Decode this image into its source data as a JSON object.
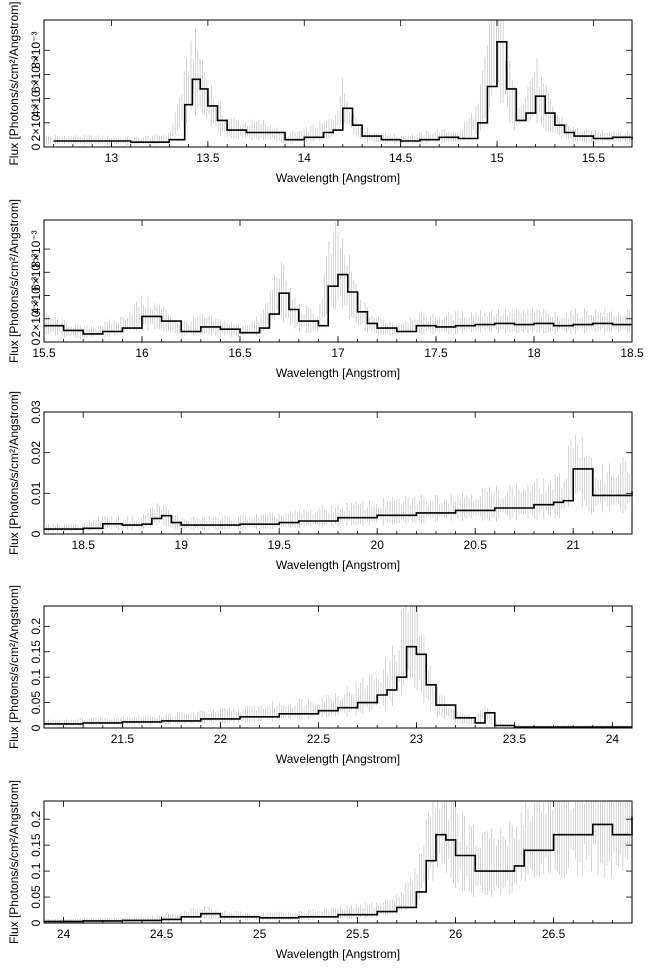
{
  "chart_data": [
    {
      "type": "line",
      "xlabel": "Wavelength [Angstrom]",
      "ylabel": "Flux [Photons/s/cm²/Angstrom]",
      "xlim": [
        12.65,
        15.7
      ],
      "ylim": [
        0,
        0.0105
      ],
      "xticks": [
        13,
        13.5,
        14,
        14.5,
        15,
        15.5
      ],
      "xtick_labels": [
        "13",
        "13.5",
        "14",
        "14.5",
        "15",
        "15.5"
      ],
      "yticks": [
        0,
        0.002,
        0.004,
        0.006,
        0.008
      ],
      "ytick_labels": [
        "0",
        "2×10⁻³",
        "4×10⁻³",
        "6×10⁻³",
        "8×10⁻³"
      ],
      "grid": false,
      "error_bars": true,
      "x": [
        12.7,
        12.9,
        13.1,
        13.3,
        13.38,
        13.42,
        13.46,
        13.5,
        13.55,
        13.6,
        13.7,
        13.8,
        13.9,
        14.0,
        14.1,
        14.15,
        14.2,
        14.25,
        14.3,
        14.4,
        14.5,
        14.6,
        14.7,
        14.8,
        14.9,
        14.95,
        15.0,
        15.05,
        15.1,
        15.15,
        15.2,
        15.25,
        15.3,
        15.35,
        15.4,
        15.5,
        15.6,
        15.7
      ],
      "values": [
        0.0005,
        0.0005,
        0.0004,
        0.0006,
        0.0035,
        0.0056,
        0.0048,
        0.0034,
        0.0022,
        0.0014,
        0.0012,
        0.0012,
        0.0006,
        0.0008,
        0.0012,
        0.0014,
        0.0032,
        0.0018,
        0.0009,
        0.0006,
        0.0005,
        0.0006,
        0.0008,
        0.0007,
        0.002,
        0.005,
        0.0087,
        0.0048,
        0.0022,
        0.0028,
        0.0042,
        0.0028,
        0.0018,
        0.0012,
        0.0009,
        0.0007,
        0.0008,
        0.0006
      ]
    },
    {
      "type": "line",
      "xlabel": "Wavelength [Angstrom]",
      "ylabel": "Flux [Photons/s/cm²/Angstrom]",
      "xlim": [
        15.5,
        18.5
      ],
      "ylim": [
        0,
        0.0105
      ],
      "xticks": [
        15.5,
        16,
        16.5,
        17,
        17.5,
        18,
        18.5
      ],
      "xtick_labels": [
        "15.5",
        "16",
        "16.5",
        "17",
        "17.5",
        "18",
        "18.5"
      ],
      "yticks": [
        0,
        0.002,
        0.004,
        0.006,
        0.008
      ],
      "ytick_labels": [
        "0",
        "2×10⁻³",
        "4×10⁻³",
        "6×10⁻³",
        "8×10⁻³"
      ],
      "grid": false,
      "error_bars": true,
      "x": [
        15.5,
        15.6,
        15.7,
        15.8,
        15.9,
        16.0,
        16.1,
        16.2,
        16.3,
        16.4,
        16.5,
        16.6,
        16.65,
        16.7,
        16.75,
        16.8,
        16.9,
        16.95,
        17.0,
        17.05,
        17.1,
        17.15,
        17.2,
        17.3,
        17.4,
        17.5,
        17.6,
        17.7,
        17.8,
        17.9,
        18.0,
        18.1,
        18.2,
        18.3,
        18.4,
        18.5
      ],
      "values": [
        0.0014,
        0.001,
        0.0007,
        0.0009,
        0.0012,
        0.0022,
        0.0018,
        0.0009,
        0.0013,
        0.0011,
        0.0008,
        0.0012,
        0.0024,
        0.0042,
        0.0028,
        0.0018,
        0.0014,
        0.0048,
        0.0058,
        0.0043,
        0.0026,
        0.0016,
        0.0012,
        0.0009,
        0.0014,
        0.0013,
        0.0014,
        0.0015,
        0.0016,
        0.0015,
        0.0016,
        0.0014,
        0.0015,
        0.0016,
        0.0015,
        0.0015
      ]
    },
    {
      "type": "line",
      "xlabel": "Wavelength [Angstrom]",
      "ylabel": "Flux [Photons/s/cm²/Angstrom]",
      "xlim": [
        18.3,
        21.3
      ],
      "ylim": [
        0,
        0.03
      ],
      "xticks": [
        18.5,
        19,
        19.5,
        20,
        20.5,
        21
      ],
      "xtick_labels": [
        "18.5",
        "19",
        "19.5",
        "20",
        "20.5",
        "21"
      ],
      "yticks": [
        0,
        0.01,
        0.02,
        0.03
      ],
      "ytick_labels": [
        "0",
        "0.01",
        "0.02",
        "0.03"
      ],
      "grid": false,
      "error_bars": true,
      "x": [
        18.3,
        18.5,
        18.6,
        18.7,
        18.8,
        18.85,
        18.9,
        18.95,
        19.0,
        19.1,
        19.3,
        19.5,
        19.6,
        19.8,
        20.0,
        20.2,
        20.4,
        20.6,
        20.8,
        20.9,
        20.95,
        21.0,
        21.1,
        21.3
      ],
      "values": [
        0.0012,
        0.0014,
        0.0025,
        0.0022,
        0.0024,
        0.0038,
        0.0045,
        0.0028,
        0.0022,
        0.0022,
        0.0024,
        0.0028,
        0.0032,
        0.004,
        0.0046,
        0.0052,
        0.0058,
        0.0064,
        0.0072,
        0.0078,
        0.0082,
        0.016,
        0.0095,
        0.0105
      ]
    },
    {
      "type": "line",
      "xlabel": "Wavelength [Angstrom]",
      "ylabel": "Flux [Photons/s/cm²/Angstrom]",
      "xlim": [
        21.1,
        24.1
      ],
      "ylim": [
        0,
        0.24
      ],
      "xticks": [
        21.5,
        22,
        22.5,
        23,
        23.5,
        24
      ],
      "xtick_labels": [
        "21.5",
        "22",
        "22.5",
        "23",
        "23.5",
        "24"
      ],
      "yticks": [
        0,
        0.05,
        0.1,
        0.15,
        0.2
      ],
      "ytick_labels": [
        "0",
        "0.05",
        "0.1",
        "0.15",
        "0.2"
      ],
      "grid": false,
      "error_bars": true,
      "x": [
        21.1,
        21.3,
        21.5,
        21.7,
        21.9,
        22.1,
        22.3,
        22.5,
        22.6,
        22.7,
        22.8,
        22.85,
        22.9,
        22.95,
        23.0,
        23.05,
        23.1,
        23.2,
        23.3,
        23.35,
        23.4,
        23.5,
        23.7,
        23.9,
        24.1
      ],
      "values": [
        0.008,
        0.01,
        0.012,
        0.014,
        0.018,
        0.022,
        0.028,
        0.034,
        0.04,
        0.05,
        0.065,
        0.075,
        0.1,
        0.16,
        0.145,
        0.085,
        0.045,
        0.02,
        0.01,
        0.03,
        0.005,
        0.002,
        0.002,
        0.002,
        0.002
      ]
    },
    {
      "type": "line",
      "xlabel": "Wavelength [Angstrom]",
      "ylabel": "Flux [Photons/s/cm²/Angstrom]",
      "xlim": [
        23.9,
        26.9
      ],
      "ylim": [
        0,
        0.235
      ],
      "xticks": [
        24,
        24.5,
        25,
        25.5,
        26,
        26.5
      ],
      "xtick_labels": [
        "24",
        "24.5",
        "25",
        "25.5",
        "26",
        "26.5"
      ],
      "yticks": [
        0,
        0.05,
        0.1,
        0.15,
        0.2
      ],
      "ytick_labels": [
        "0",
        "0.05",
        "0.1",
        "0.15",
        "0.2"
      ],
      "grid": false,
      "error_bars": true,
      "x": [
        23.9,
        24.1,
        24.3,
        24.5,
        24.6,
        24.7,
        24.8,
        25.0,
        25.2,
        25.4,
        25.6,
        25.7,
        25.8,
        25.85,
        25.9,
        25.95,
        26.0,
        26.1,
        26.2,
        26.3,
        26.35,
        26.4,
        26.5,
        26.6,
        26.7,
        26.8,
        26.9
      ],
      "values": [
        0.003,
        0.004,
        0.005,
        0.007,
        0.012,
        0.018,
        0.012,
        0.01,
        0.012,
        0.016,
        0.022,
        0.03,
        0.06,
        0.12,
        0.17,
        0.16,
        0.13,
        0.1,
        0.1,
        0.11,
        0.14,
        0.14,
        0.17,
        0.17,
        0.19,
        0.17,
        0.205
      ]
    }
  ]
}
